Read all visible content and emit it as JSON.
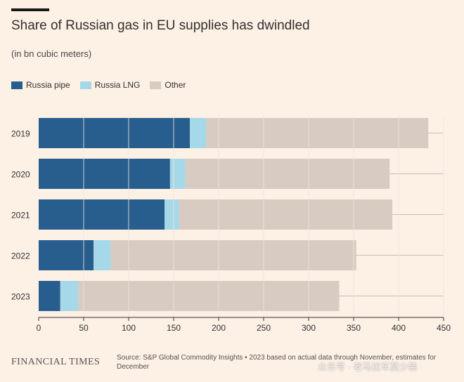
{
  "header": {
    "title": "Share of Russian gas in EU supplies has dwindled",
    "subtitle": "(in bn cubic meters)"
  },
  "legend": [
    {
      "label": "Russia pipe",
      "color": "#275e8e"
    },
    {
      "label": "Russia LNG",
      "color": "#a5d8e8"
    },
    {
      "label": "Other",
      "color": "#d8cbc2"
    }
  ],
  "chart_data": {
    "type": "bar",
    "orientation": "horizontal",
    "stacked": true,
    "categories": [
      "2019",
      "2020",
      "2021",
      "2022",
      "2023"
    ],
    "series": [
      {
        "name": "Russia pipe",
        "color": "#275e8e",
        "values": [
          168,
          146,
          140,
          61,
          24
        ]
      },
      {
        "name": "Russia LNG",
        "color": "#a5d8e8",
        "values": [
          18,
          17,
          16,
          19,
          20
        ]
      },
      {
        "name": "Other",
        "color": "#d8cbc2",
        "values": [
          247,
          227,
          237,
          273,
          290
        ]
      }
    ],
    "xlim": [
      0,
      450
    ],
    "xticks": [
      "0",
      "50",
      "100",
      "150",
      "200",
      "250",
      "300",
      "350",
      "400",
      "450"
    ],
    "grid": true
  },
  "footer": {
    "brand": "FINANCIAL TIMES",
    "source": "Source: S&P Global Commodity Insights • 2023 based on actual data through November, estimates for December"
  },
  "watermark": "众东号 · 老马拉车莫少装"
}
